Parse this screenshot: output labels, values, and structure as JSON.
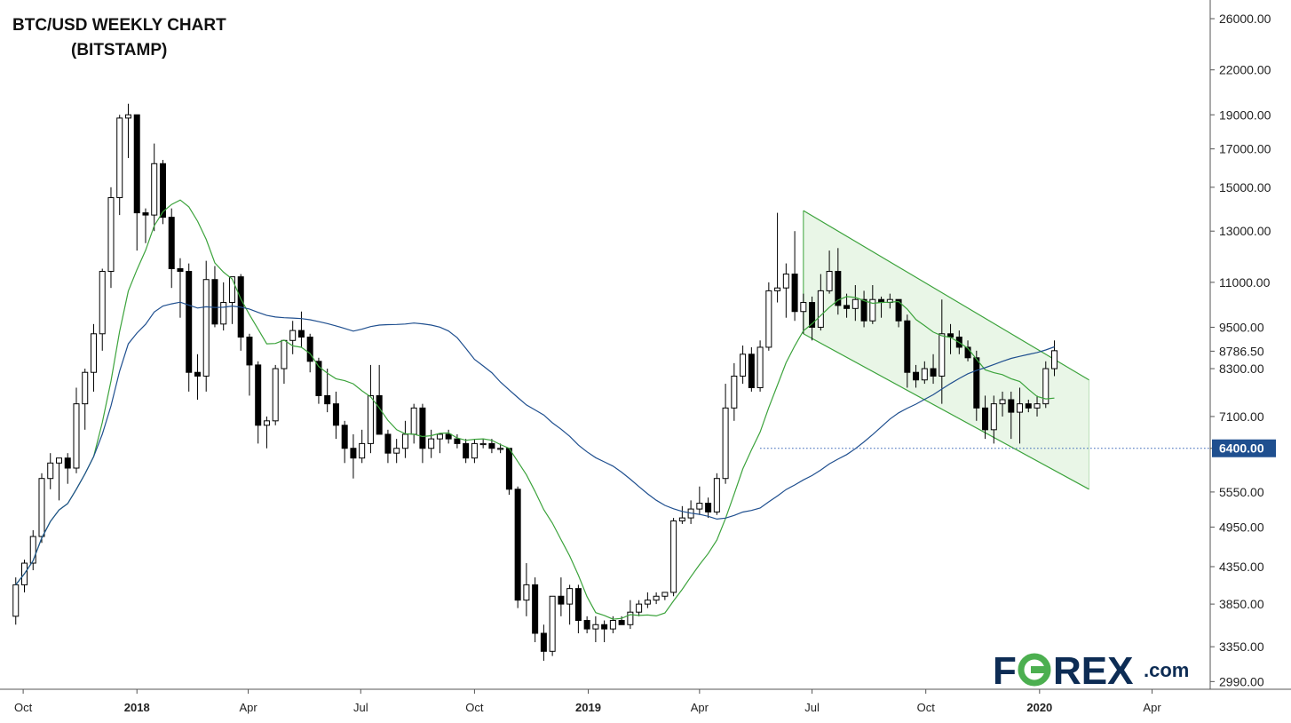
{
  "chart_data": {
    "type": "candlestick",
    "title_line1": "BTC/USD WEEKLY CHART",
    "title_line2": "(BITSTAMP)",
    "y_ticks": [
      "26000.00",
      "22000.00",
      "19000.00",
      "17000.00",
      "15000.00",
      "13000.00",
      "11000.00",
      "9500.00",
      "8786.50",
      "8300.00",
      "7100.00",
      "6400.00",
      "5550.00",
      "4950.00",
      "4350.00",
      "3850.00",
      "3350.00",
      "2990.00"
    ],
    "y_tick_values": [
      26000,
      22000,
      19000,
      17000,
      15000,
      13000,
      11000,
      9500,
      8786.5,
      8300,
      7100,
      6400,
      5550,
      4950,
      4350,
      3850,
      3350,
      2990
    ],
    "y_scale": "log",
    "ylim": [
      2800,
      27000
    ],
    "x_ticks": [
      {
        "label": "Oct",
        "date": "2017-10-01",
        "bold": false
      },
      {
        "label": "2018",
        "date": "2018-01-01",
        "bold": true
      },
      {
        "label": "Apr",
        "date": "2018-04-01",
        "bold": false
      },
      {
        "label": "Jul",
        "date": "2018-07-01",
        "bold": false
      },
      {
        "label": "Oct",
        "date": "2018-10-01",
        "bold": false
      },
      {
        "label": "2019",
        "date": "2019-01-01",
        "bold": true
      },
      {
        "label": "Apr",
        "date": "2019-04-01",
        "bold": false
      },
      {
        "label": "Jul",
        "date": "2019-07-01",
        "bold": false
      },
      {
        "label": "Oct",
        "date": "2019-10-01",
        "bold": false
      },
      {
        "label": "2020",
        "date": "2020-01-01",
        "bold": true
      },
      {
        "label": "Apr",
        "date": "2020-04-01",
        "bold": false
      }
    ],
    "x_range": [
      "2017-09-18",
      "2020-05-18"
    ],
    "candles_start": "2017-09-25",
    "candles_interval": "1 week",
    "candles_ohlc": [
      [
        3700,
        4200,
        3600,
        4100
      ],
      [
        4100,
        4450,
        4000,
        4400
      ],
      [
        4400,
        4900,
        4300,
        4800
      ],
      [
        4800,
        5900,
        4700,
        5800
      ],
      [
        5800,
        6300,
        5600,
        6100
      ],
      [
        6100,
        6200,
        5400,
        6200
      ],
      [
        6200,
        6300,
        5700,
        6000
      ],
      [
        6000,
        7800,
        5900,
        7400
      ],
      [
        7400,
        8300,
        6800,
        8200
      ],
      [
        8200,
        9600,
        7700,
        9300
      ],
      [
        9300,
        11500,
        8800,
        11400
      ],
      [
        11400,
        15000,
        10800,
        14500
      ],
      [
        14500,
        19000,
        13700,
        18800
      ],
      [
        18800,
        19700,
        16500,
        19000
      ],
      [
        19000,
        17200,
        12200,
        13800
      ],
      [
        13800,
        14000,
        12500,
        13700
      ],
      [
        13700,
        17300,
        13000,
        16200
      ],
      [
        16200,
        16400,
        13300,
        13600
      ],
      [
        13600,
        14000,
        10800,
        11500
      ],
      [
        11500,
        11900,
        9800,
        11400
      ],
      [
        11400,
        11700,
        7700,
        8200
      ],
      [
        8200,
        8700,
        7500,
        8100
      ],
      [
        8100,
        11800,
        7700,
        11100
      ],
      [
        11100,
        11600,
        9500,
        9600
      ],
      [
        9600,
        11000,
        9400,
        10300
      ],
      [
        10300,
        11200,
        9600,
        11200
      ],
      [
        11200,
        11300,
        8800,
        9200
      ],
      [
        9200,
        9300,
        7600,
        8400
      ],
      [
        8400,
        8500,
        6500,
        6900
      ],
      [
        6900,
        7100,
        6400,
        7000
      ],
      [
        7000,
        8400,
        6900,
        8300
      ],
      [
        8300,
        9000,
        7900,
        9100
      ],
      [
        9100,
        9700,
        8700,
        9400
      ],
      [
        9400,
        10000,
        8900,
        9200
      ],
      [
        9200,
        9300,
        8200,
        8500
      ],
      [
        8500,
        8600,
        7400,
        7600
      ],
      [
        7600,
        8300,
        7200,
        7400
      ],
      [
        7400,
        7700,
        6600,
        6900
      ],
      [
        6900,
        7000,
        6100,
        6400
      ],
      [
        6400,
        6700,
        5800,
        6200
      ],
      [
        6200,
        6800,
        6100,
        6500
      ],
      [
        6500,
        8400,
        6300,
        7600
      ],
      [
        7600,
        8400,
        7200,
        6700
      ],
      [
        6700,
        6800,
        6100,
        6300
      ],
      [
        6300,
        6600,
        6100,
        6400
      ],
      [
        6400,
        7000,
        6200,
        6700
      ],
      [
        6700,
        7400,
        6500,
        7300
      ],
      [
        7300,
        7400,
        6100,
        6400
      ],
      [
        6400,
        6800,
        6200,
        6600
      ],
      [
        6600,
        6700,
        6300,
        6700
      ],
      [
        6700,
        6800,
        6500,
        6600
      ],
      [
        6600,
        6700,
        6400,
        6500
      ],
      [
        6500,
        6600,
        6100,
        6200
      ],
      [
        6200,
        6600,
        6100,
        6500
      ],
      [
        6500,
        6600,
        6400,
        6500
      ],
      [
        6500,
        6600,
        6300,
        6400
      ],
      [
        6400,
        6500,
        6300,
        6400
      ],
      [
        6400,
        6400,
        5500,
        5600
      ],
      [
        5600,
        5650,
        3800,
        3900
      ],
      [
        3900,
        4400,
        3700,
        4100
      ],
      [
        4100,
        4200,
        3400,
        3500
      ],
      [
        3500,
        3600,
        3200,
        3300
      ],
      [
        3300,
        3950,
        3250,
        3950
      ],
      [
        3950,
        4200,
        3700,
        3850
      ],
      [
        3850,
        4100,
        3600,
        4050
      ],
      [
        4050,
        4100,
        3500,
        3650
      ],
      [
        3650,
        3700,
        3500,
        3550
      ],
      [
        3550,
        3700,
        3400,
        3600
      ],
      [
        3600,
        3650,
        3400,
        3550
      ],
      [
        3550,
        3700,
        3500,
        3650
      ],
      [
        3650,
        3700,
        3600,
        3600
      ],
      [
        3600,
        3900,
        3550,
        3750
      ],
      [
        3750,
        3900,
        3700,
        3850
      ],
      [
        3850,
        4000,
        3800,
        3900
      ],
      [
        3900,
        4000,
        3850,
        3950
      ],
      [
        3950,
        4000,
        3900,
        4000
      ],
      [
        4000,
        5100,
        3950,
        5050
      ],
      [
        5050,
        5300,
        5000,
        5100
      ],
      [
        5100,
        5400,
        5000,
        5250
      ],
      [
        5250,
        5650,
        5150,
        5350
      ],
      [
        5350,
        5450,
        5100,
        5200
      ],
      [
        5200,
        5900,
        5150,
        5800
      ],
      [
        5800,
        7900,
        5700,
        7300
      ],
      [
        7300,
        8450,
        7000,
        8100
      ],
      [
        8100,
        8950,
        7900,
        8700
      ],
      [
        8700,
        8900,
        7700,
        7800
      ],
      [
        7800,
        9100,
        7700,
        8900
      ],
      [
        8900,
        11000,
        8800,
        10700
      ],
      [
        10700,
        13800,
        10300,
        10800
      ],
      [
        10800,
        11700,
        9800,
        11300
      ],
      [
        11300,
        13000,
        9700,
        10000
      ],
      [
        10000,
        10600,
        9300,
        10300
      ],
      [
        10300,
        10500,
        9100,
        9500
      ],
      [
        9500,
        11300,
        9400,
        10700
      ],
      [
        10700,
        12200,
        10600,
        11400
      ],
      [
        11400,
        12300,
        9900,
        10200
      ],
      [
        10200,
        10600,
        9800,
        10100
      ],
      [
        10100,
        10900,
        9700,
        10400
      ],
      [
        10400,
        10700,
        9500,
        9700
      ],
      [
        9700,
        10900,
        9600,
        10400
      ],
      [
        10400,
        10500,
        9800,
        10300
      ],
      [
        10300,
        10600,
        10100,
        10400
      ],
      [
        10400,
        10400,
        9500,
        9700
      ],
      [
        9700,
        9900,
        7800,
        8200
      ],
      [
        8200,
        8400,
        7800,
        8000
      ],
      [
        8000,
        8500,
        7900,
        8300
      ],
      [
        8300,
        8700,
        7900,
        8100
      ],
      [
        8100,
        10400,
        7400,
        9300
      ],
      [
        9300,
        9600,
        8700,
        9200
      ],
      [
        9200,
        9400,
        8700,
        8900
      ],
      [
        8900,
        9100,
        8500,
        8600
      ],
      [
        8600,
        8800,
        7000,
        7300
      ],
      [
        7300,
        7600,
        6600,
        6800
      ],
      [
        6800,
        7600,
        6500,
        7400
      ],
      [
        7400,
        7700,
        7100,
        7500
      ],
      [
        7500,
        7700,
        6600,
        7200
      ],
      [
        7200,
        7800,
        6500,
        7400
      ],
      [
        7400,
        7500,
        7200,
        7300
      ],
      [
        7300,
        7600,
        7100,
        7400
      ],
      [
        7400,
        8500,
        7300,
        8300
      ],
      [
        8300,
        9100,
        8100,
        8800
      ]
    ],
    "series": [
      {
        "label_visible": false,
        "color": "#3ca33c",
        "period": 10
      },
      {
        "label_visible": false,
        "color": "#1f4f8f",
        "period": 40
      }
    ],
    "channel": {
      "upper": [
        {
          "date": "2019-06-24",
          "value": 13900
        },
        {
          "date": "2020-02-10",
          "value": 8000
        }
      ],
      "lower": [
        {
          "date": "2019-06-24",
          "value": 9300
        },
        {
          "date": "2020-02-10",
          "value": 5600
        }
      ],
      "fill": "#e9f6e7",
      "line_color": "#3ca33c"
    },
    "support_line": {
      "value": 6400,
      "from_date": "2019-05-20",
      "color": "#2f5db3"
    },
    "price_label": {
      "value": "6400.00",
      "color": "#1f4f8f"
    },
    "logo": {
      "text_before": "F",
      "text_after": "REX",
      "suffix": ".com",
      "accent": "#4caf50"
    }
  }
}
